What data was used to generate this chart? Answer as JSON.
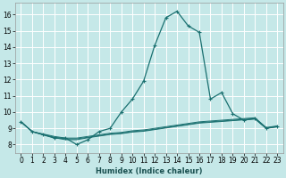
{
  "title": "",
  "xlabel": "Humidex (Indice chaleur)",
  "ylabel": "",
  "bg_color": "#c5e8e8",
  "grid_color": "#ffffff",
  "line_color": "#1a7070",
  "xlim": [
    -0.5,
    23.5
  ],
  "ylim": [
    7.5,
    16.7
  ],
  "xticks": [
    0,
    1,
    2,
    3,
    4,
    5,
    6,
    7,
    8,
    9,
    10,
    11,
    12,
    13,
    14,
    15,
    16,
    17,
    18,
    19,
    20,
    21,
    22,
    23
  ],
  "yticks": [
    8,
    9,
    10,
    11,
    12,
    13,
    14,
    15,
    16
  ],
  "series_main": [
    9.4,
    8.8,
    8.6,
    8.4,
    8.4,
    8.0,
    8.3,
    8.8,
    9.0,
    10.0,
    10.8,
    11.9,
    14.1,
    15.8,
    16.2,
    15.3,
    14.9,
    10.8,
    11.2,
    9.9,
    9.5,
    9.6,
    9.0,
    9.1
  ],
  "series_flat": [
    [
      9.4,
      8.8,
      8.65,
      8.5,
      8.4,
      8.4,
      8.5,
      8.6,
      8.7,
      8.75,
      8.85,
      8.9,
      9.0,
      9.1,
      9.2,
      9.3,
      9.4,
      9.45,
      9.5,
      9.55,
      9.6,
      9.65,
      9.05,
      9.15
    ],
    [
      9.4,
      8.8,
      8.62,
      8.45,
      8.35,
      8.35,
      8.45,
      8.55,
      8.65,
      8.7,
      8.8,
      8.85,
      8.95,
      9.05,
      9.15,
      9.25,
      9.35,
      9.4,
      9.45,
      9.5,
      9.55,
      9.6,
      9.02,
      9.12
    ],
    [
      9.4,
      8.8,
      8.6,
      8.42,
      8.3,
      8.3,
      8.42,
      8.52,
      8.62,
      8.67,
      8.77,
      8.82,
      8.92,
      9.02,
      9.12,
      9.22,
      9.32,
      9.37,
      9.42,
      9.47,
      9.52,
      9.57,
      9.0,
      9.1
    ]
  ]
}
